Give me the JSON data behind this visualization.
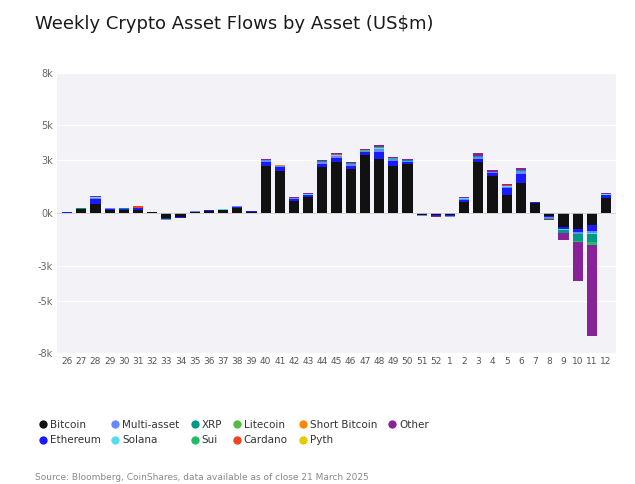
{
  "title": "Weekly Crypto Asset Flows by Asset (US$m)",
  "source": "Source: Bloomberg, CoinShares, data available as of close 21 March 2025",
  "background_color": "#ffffff",
  "plot_bg_color": "#f2f2f7",
  "categories": [
    26,
    27,
    28,
    29,
    30,
    31,
    32,
    33,
    34,
    35,
    36,
    37,
    38,
    39,
    40,
    41,
    42,
    43,
    44,
    45,
    46,
    47,
    48,
    49,
    50,
    51,
    52,
    1,
    2,
    3,
    4,
    5,
    6,
    7,
    8,
    9,
    10,
    11,
    12
  ],
  "ylim": [
    -8000,
    8000
  ],
  "yticks": [
    -8000,
    -5000,
    -3000,
    0,
    3000,
    5000,
    8000
  ],
  "ytick_labels": [
    "-8k",
    "-5k",
    "-3k",
    "0k",
    "3k",
    "5k",
    "8k"
  ],
  "colors": {
    "Bitcoin": "#111111",
    "Ethereum": "#1a1aff",
    "Multi-asset": "#6688ff",
    "Solana": "#55ddee",
    "XRP": "#009988",
    "Sui": "#22bb66",
    "Litecoin": "#55bb44",
    "Cardano": "#ee4422",
    "Short Bitcoin": "#ff8800",
    "Pyth": "#ddcc00",
    "Other": "#882299"
  },
  "series": {
    "Bitcoin": [
      20,
      200,
      500,
      150,
      170,
      180,
      50,
      -300,
      -250,
      60,
      120,
      150,
      300,
      80,
      2700,
      2400,
      700,
      900,
      2600,
      2900,
      2500,
      3300,
      3100,
      2700,
      2800,
      -100,
      -100,
      -100,
      600,
      2900,
      2100,
      1000,
      1700,
      550,
      -200,
      -800,
      -900,
      -700,
      850
    ],
    "Ethereum": [
      10,
      30,
      300,
      100,
      60,
      100,
      10,
      -50,
      -30,
      20,
      30,
      30,
      50,
      20,
      200,
      200,
      100,
      100,
      200,
      250,
      200,
      150,
      400,
      250,
      100,
      -30,
      -60,
      -80,
      150,
      200,
      150,
      400,
      500,
      50,
      -50,
      -100,
      -200,
      -300,
      150
    ],
    "Multi-asset": [
      5,
      20,
      80,
      30,
      20,
      20,
      5,
      -15,
      -8,
      10,
      15,
      15,
      25,
      8,
      100,
      80,
      40,
      50,
      100,
      120,
      90,
      70,
      150,
      100,
      60,
      -15,
      -25,
      -30,
      60,
      80,
      70,
      100,
      180,
      15,
      -15,
      -40,
      -80,
      -120,
      50
    ],
    "Solana": [
      2,
      4,
      12,
      8,
      4,
      4,
      2,
      -4,
      -2,
      3,
      4,
      4,
      8,
      2,
      12,
      10,
      10,
      15,
      25,
      30,
      25,
      20,
      50,
      30,
      20,
      -4,
      -6,
      -8,
      15,
      25,
      15,
      30,
      40,
      8,
      4,
      -8,
      -40,
      -60,
      15
    ],
    "XRP": [
      1,
      2,
      8,
      4,
      2,
      2,
      1,
      -2,
      -1,
      2,
      2,
      2,
      4,
      1,
      8,
      8,
      8,
      10,
      15,
      20,
      15,
      12,
      30,
      20,
      15,
      -2,
      -4,
      -4,
      8,
      15,
      10,
      20,
      25,
      4,
      -50,
      -180,
      -350,
      -500,
      8
    ],
    "Sui": [
      0,
      1,
      2,
      1,
      1,
      1,
      0,
      -1,
      -1,
      1,
      1,
      1,
      2,
      1,
      2,
      2,
      2,
      4,
      6,
      8,
      6,
      5,
      12,
      8,
      6,
      -1,
      -2,
      -2,
      3,
      6,
      5,
      8,
      10,
      2,
      -4,
      -25,
      -80,
      -120,
      4
    ],
    "Litecoin": [
      0,
      1,
      2,
      1,
      1,
      1,
      0,
      -1,
      0,
      1,
      1,
      1,
      1,
      1,
      2,
      2,
      2,
      3,
      4,
      4,
      3,
      3,
      6,
      4,
      3,
      -1,
      -1,
      -1,
      2,
      3,
      2,
      4,
      5,
      1,
      -2,
      -4,
      -12,
      -16,
      2
    ],
    "Cardano": [
      0,
      1,
      2,
      1,
      1,
      80,
      0,
      -1,
      0,
      1,
      1,
      1,
      1,
      1,
      2,
      2,
      2,
      3,
      4,
      4,
      3,
      3,
      6,
      4,
      3,
      -1,
      -1,
      -1,
      2,
      3,
      2,
      4,
      5,
      1,
      -2,
      -4,
      -4,
      -4,
      2
    ],
    "Short Bitcoin": [
      0,
      1,
      2,
      1,
      1,
      1,
      0,
      -1,
      0,
      1,
      1,
      1,
      1,
      1,
      2,
      2,
      2,
      3,
      4,
      4,
      3,
      3,
      6,
      4,
      3,
      -1,
      -1,
      -1,
      2,
      3,
      2,
      4,
      5,
      1,
      -2,
      -4,
      -4,
      -4,
      2
    ],
    "Pyth": [
      0,
      0,
      1,
      0,
      0,
      0,
      0,
      0,
      0,
      0,
      0,
      0,
      1,
      0,
      1,
      1,
      1,
      1,
      2,
      2,
      2,
      1,
      2,
      2,
      2,
      0,
      0,
      0,
      1,
      2,
      1,
      2,
      2,
      0,
      -1,
      -2,
      -2,
      -3,
      1
    ],
    "Other": [
      5,
      15,
      40,
      15,
      10,
      10,
      5,
      -15,
      -8,
      8,
      8,
      10,
      15,
      8,
      40,
      25,
      25,
      40,
      80,
      80,
      60,
      50,
      120,
      80,
      60,
      -15,
      -25,
      -25,
      80,
      160,
      120,
      80,
      80,
      15,
      -80,
      -400,
      -2200,
      -5200,
      80
    ]
  },
  "legend_order": [
    "Bitcoin",
    "Ethereum",
    "Multi-asset",
    "Solana",
    "XRP",
    "Sui",
    "Litecoin",
    "Cardano",
    "Short Bitcoin",
    "Pyth",
    "Other"
  ]
}
